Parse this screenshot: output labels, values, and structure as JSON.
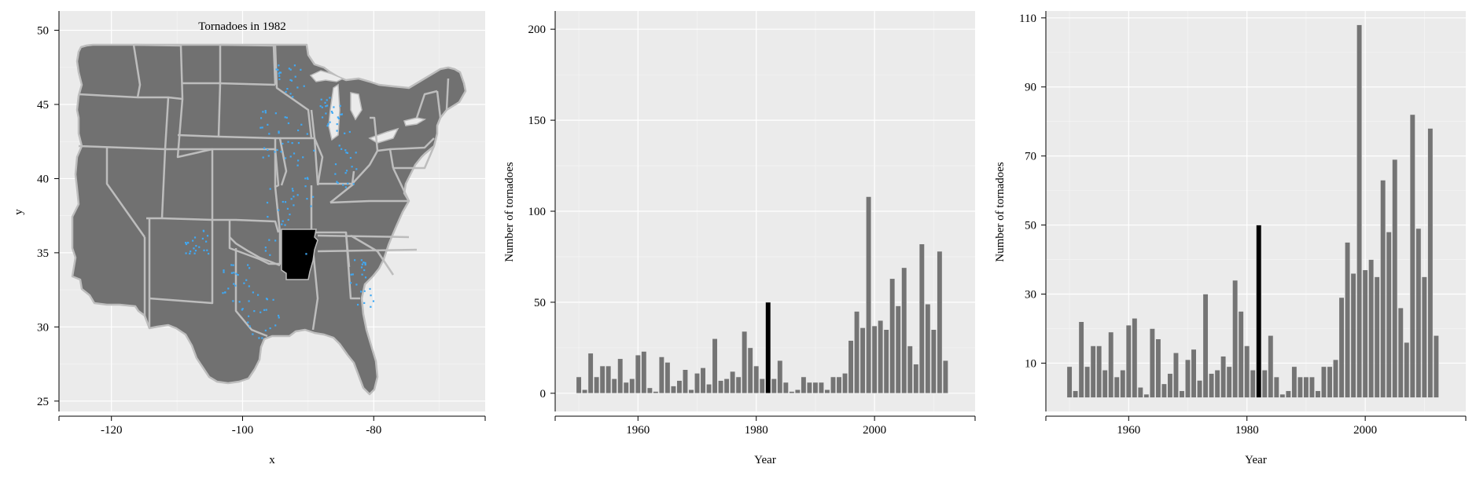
{
  "chart_data": [
    {
      "type": "map",
      "title": "Tornadoes in 1982",
      "xlabel": "x",
      "ylabel": "y",
      "xlim": [
        -128,
        -63
      ],
      "ylim": [
        24.3,
        51.3
      ],
      "xticks": [
        -120,
        -100,
        -80
      ],
      "yticks": [
        25,
        30,
        35,
        40,
        45,
        50
      ],
      "highlight_region": "Arkansas",
      "colors": {
        "land": "#717171",
        "borders": "#bdbdbd",
        "highlight": "#000000",
        "tornado_points": "#3fa9f5",
        "panel": "#ebebeb"
      }
    },
    {
      "type": "bar",
      "xlabel": "Year",
      "ylabel": "Number of tornadoes",
      "xlim": [
        1946,
        2017
      ],
      "ylim": [
        -10,
        210
      ],
      "xticks": [
        1960,
        1980,
        2000
      ],
      "yticks": [
        0,
        50,
        100,
        150,
        200
      ],
      "highlight_year": 1982,
      "colors": {
        "bars": "#6e6e6e",
        "highlight": "#000000",
        "panel": "#ebebeb"
      },
      "x": [
        1950,
        1951,
        1952,
        1953,
        1954,
        1955,
        1956,
        1957,
        1958,
        1959,
        1960,
        1961,
        1962,
        1963,
        1964,
        1965,
        1966,
        1967,
        1968,
        1969,
        1970,
        1971,
        1972,
        1973,
        1974,
        1975,
        1976,
        1977,
        1978,
        1979,
        1980,
        1981,
        1982,
        1983,
        1984,
        1985,
        1986,
        1987,
        1988,
        1989,
        1990,
        1991,
        1992,
        1993,
        1994,
        1995,
        1996,
        1997,
        1998,
        1999,
        2000,
        2001,
        2002,
        2003,
        2004,
        2005,
        2006,
        2007,
        2008,
        2009,
        2010,
        2011,
        2012
      ],
      "values": [
        9,
        2,
        22,
        9,
        15,
        15,
        8,
        19,
        6,
        8,
        21,
        23,
        3,
        1,
        20,
        17,
        4,
        7,
        13,
        2,
        11,
        14,
        5,
        30,
        7,
        8,
        12,
        9,
        34,
        25,
        15,
        8,
        50,
        8,
        18,
        6,
        1,
        2,
        9,
        6,
        6,
        6,
        2,
        9,
        9,
        11,
        29,
        45,
        36,
        108,
        37,
        40,
        35,
        63,
        48,
        69,
        26,
        16,
        82,
        49,
        35,
        78,
        18
      ]
    },
    {
      "type": "bar",
      "xlabel": "Year",
      "ylabel": "Number of tornadoes",
      "xlim": [
        1946,
        2017
      ],
      "ylim": [
        -4,
        112
      ],
      "xticks": [
        1960,
        1980,
        2000
      ],
      "yticks": [
        10,
        30,
        50,
        70,
        90,
        110
      ],
      "highlight_year": 1982,
      "colors": {
        "bars": "#6e6e6e",
        "highlight": "#000000",
        "panel": "#ebebeb"
      },
      "x": [
        1950,
        1951,
        1952,
        1953,
        1954,
        1955,
        1956,
        1957,
        1958,
        1959,
        1960,
        1961,
        1962,
        1963,
        1964,
        1965,
        1966,
        1967,
        1968,
        1969,
        1970,
        1971,
        1972,
        1973,
        1974,
        1975,
        1976,
        1977,
        1978,
        1979,
        1980,
        1981,
        1982,
        1983,
        1984,
        1985,
        1986,
        1987,
        1988,
        1989,
        1990,
        1991,
        1992,
        1993,
        1994,
        1995,
        1996,
        1997,
        1998,
        1999,
        2000,
        2001,
        2002,
        2003,
        2004,
        2005,
        2006,
        2007,
        2008,
        2009,
        2010,
        2011,
        2012
      ],
      "values": [
        9,
        2,
        22,
        9,
        15,
        15,
        8,
        19,
        6,
        8,
        21,
        23,
        3,
        1,
        20,
        17,
        4,
        7,
        13,
        2,
        11,
        14,
        5,
        30,
        7,
        8,
        12,
        9,
        34,
        25,
        15,
        8,
        50,
        8,
        18,
        6,
        1,
        2,
        9,
        6,
        6,
        6,
        2,
        9,
        9,
        11,
        29,
        45,
        36,
        108,
        37,
        40,
        35,
        63,
        48,
        69,
        26,
        16,
        82,
        49,
        35,
        78,
        18
      ]
    }
  ]
}
